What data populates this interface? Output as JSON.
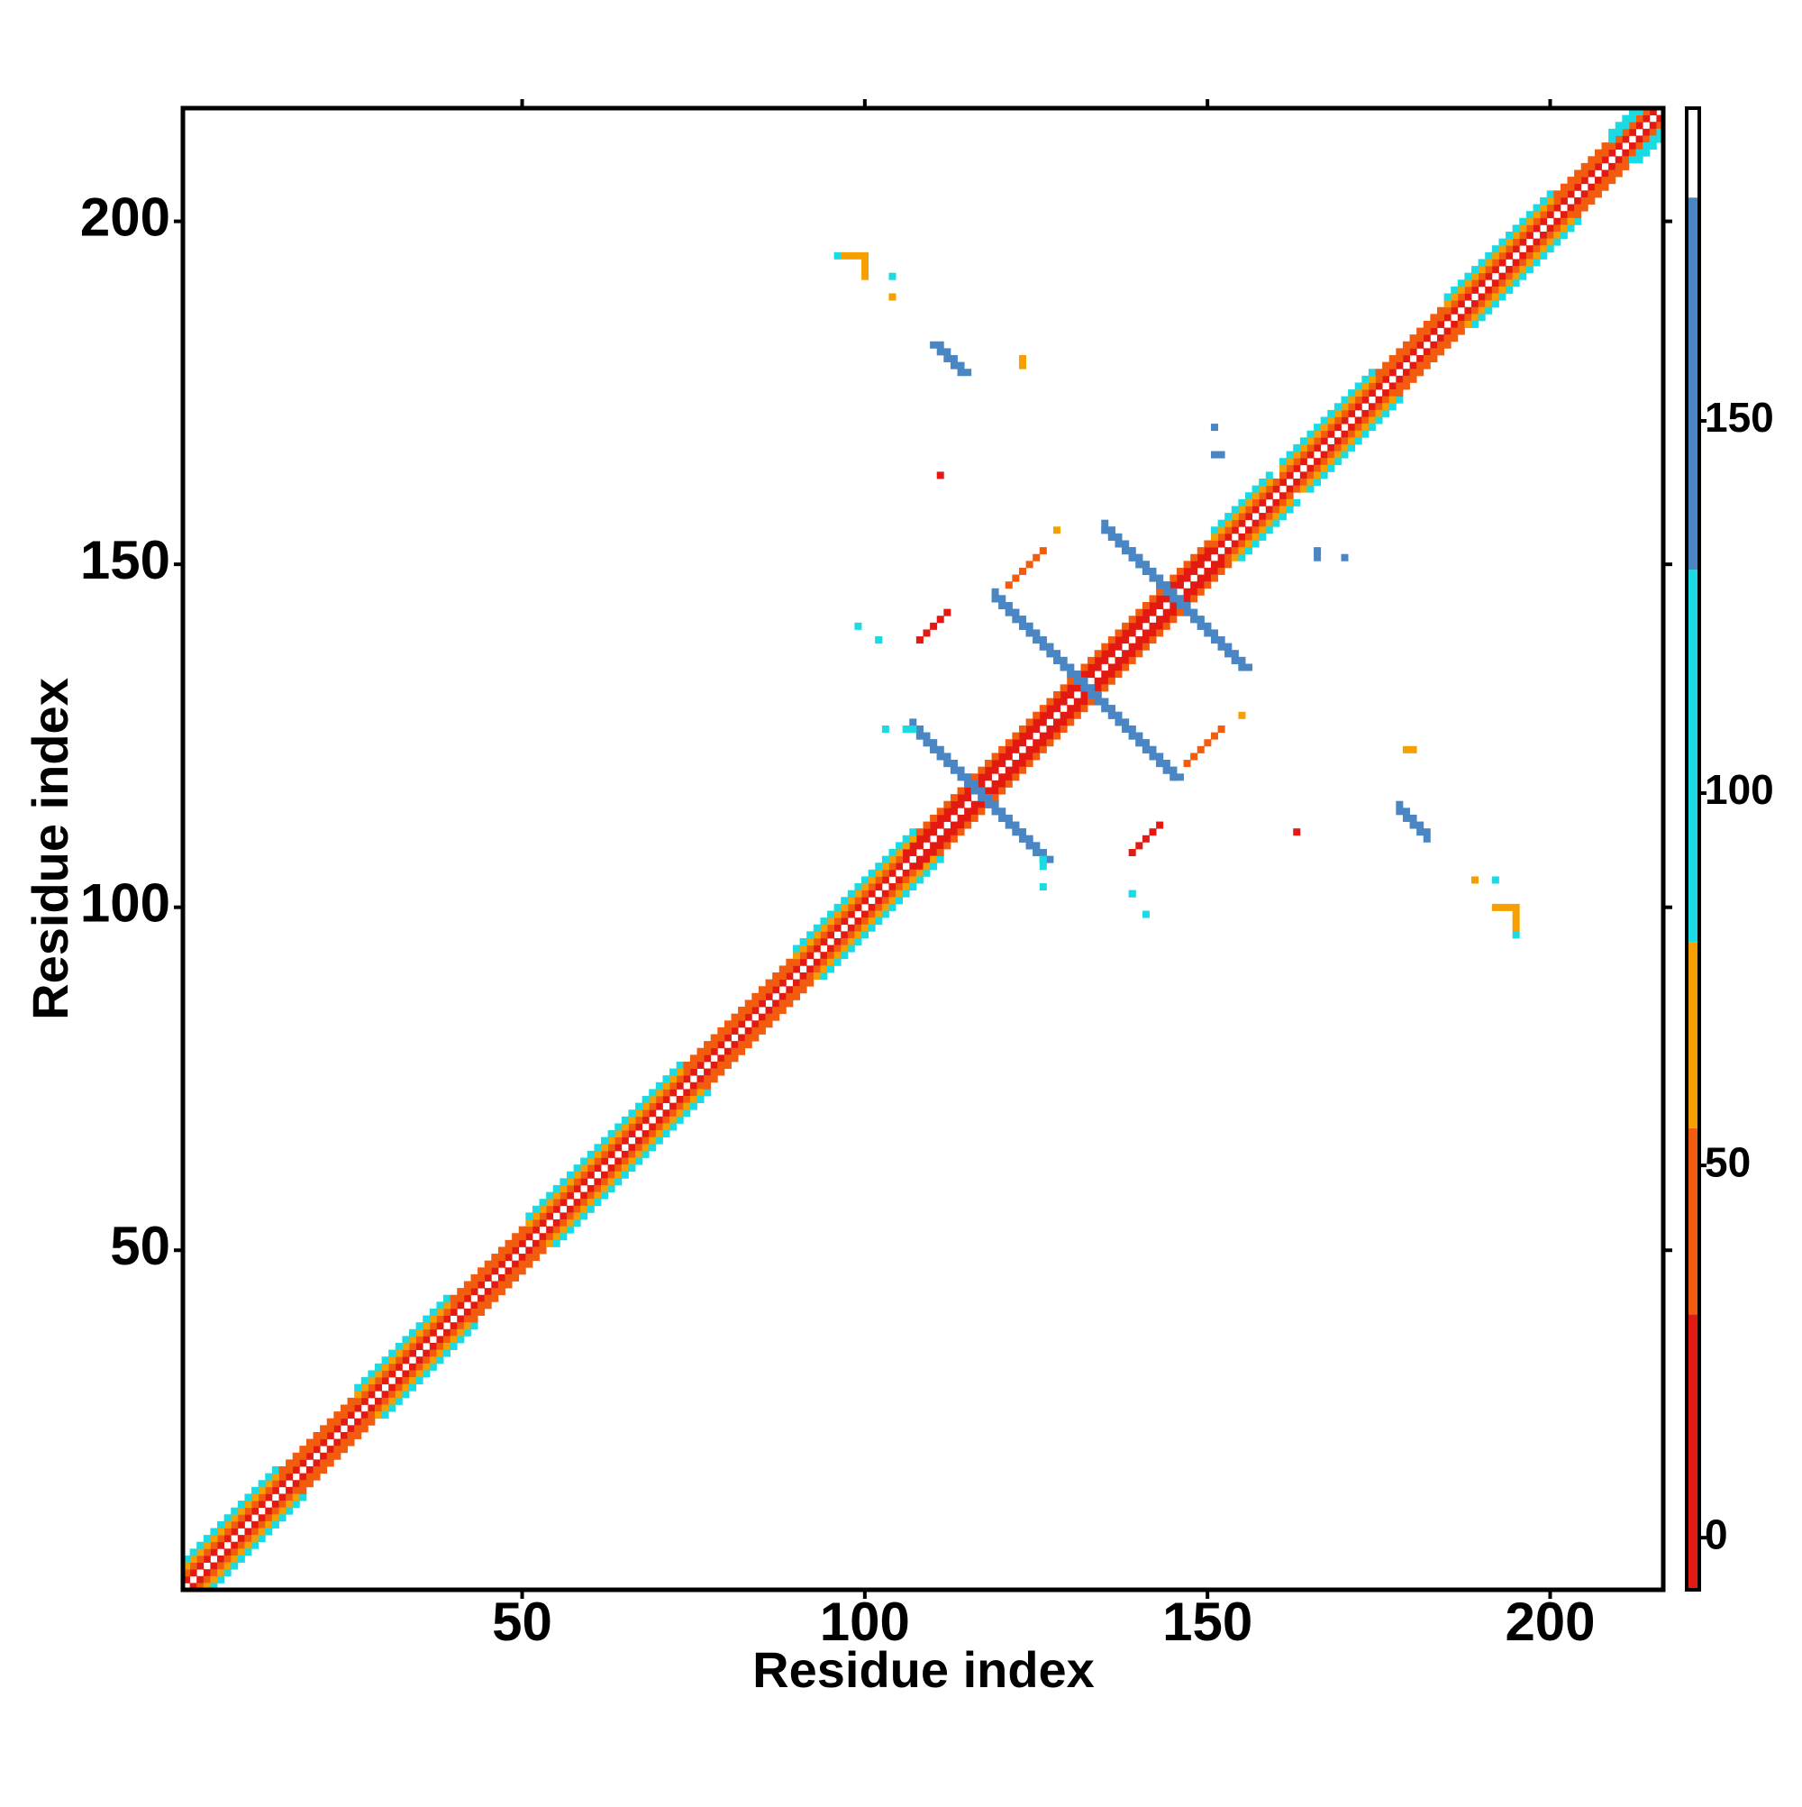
{
  "chart_data": {
    "type": "heatmap",
    "xlabel": "Residue index",
    "ylabel": "Residue index",
    "xlim": [
      0.5,
      216.5
    ],
    "ylim": [
      0.5,
      216.5
    ],
    "xticks": [
      50,
      100,
      150,
      200
    ],
    "yticks": [
      50,
      100,
      150,
      200
    ],
    "symmetric": true,
    "colorbar": {
      "lim": [
        -7,
        192
      ],
      "ticks": [
        0,
        50,
        100,
        150
      ],
      "bounds": [
        -7,
        30,
        55,
        80,
        130,
        180,
        192
      ],
      "colors": [
        "#e31a12",
        "#f25c0f",
        "#f5a000",
        "#1adbe3",
        "#4a86c4",
        "#ffffff"
      ]
    },
    "diagonals": [
      {
        "from": 1,
        "to": 215,
        "offset": 1,
        "value": 15
      },
      {
        "from": 1,
        "to": 105,
        "offset": 2,
        "value": 45
      },
      {
        "from": 106,
        "to": 150,
        "offset": 2,
        "value": 20
      },
      {
        "from": 151,
        "to": 214,
        "offset": 2,
        "value": 45
      },
      {
        "from": 1,
        "to": 14,
        "offset": 3,
        "value": 65
      },
      {
        "from": 1,
        "to": 14,
        "offset": 4,
        "value": 105
      },
      {
        "from": 15,
        "to": 25,
        "offset": 3,
        "value": 45
      },
      {
        "from": 26,
        "to": 39,
        "offset": 3,
        "value": 65
      },
      {
        "from": 26,
        "to": 39,
        "offset": 4,
        "value": 105
      },
      {
        "from": 40,
        "to": 50,
        "offset": 3,
        "value": 45
      },
      {
        "from": 51,
        "to": 66,
        "offset": 3,
        "value": 65
      },
      {
        "from": 51,
        "to": 66,
        "offset": 4,
        "value": 105
      },
      {
        "from": 67,
        "to": 73,
        "offset": 3,
        "value": 65
      },
      {
        "from": 67,
        "to": 73,
        "offset": 4,
        "value": 105
      },
      {
        "from": 74,
        "to": 89,
        "offset": 3,
        "value": 45
      },
      {
        "from": 90,
        "to": 107,
        "offset": 3,
        "value": 65
      },
      {
        "from": 90,
        "to": 107,
        "offset": 4,
        "value": 105
      },
      {
        "from": 108,
        "to": 150,
        "offset": 3,
        "value": 45
      },
      {
        "from": 151,
        "to": 159,
        "offset": 3,
        "value": 65
      },
      {
        "from": 151,
        "to": 159,
        "offset": 4,
        "value": 105
      },
      {
        "from": 161,
        "to": 174,
        "offset": 3,
        "value": 65
      },
      {
        "from": 161,
        "to": 174,
        "offset": 4,
        "value": 105
      },
      {
        "from": 175,
        "to": 184,
        "offset": 3,
        "value": 45
      },
      {
        "from": 185,
        "to": 200,
        "offset": 3,
        "value": 65
      },
      {
        "from": 185,
        "to": 200,
        "offset": 4,
        "value": 105
      },
      {
        "from": 201,
        "to": 208,
        "offset": 3,
        "value": 45
      },
      {
        "from": 209,
        "to": 213,
        "offset": 3,
        "value": 105
      },
      {
        "from": 209,
        "to": 212,
        "offset": 4,
        "value": 105
      }
    ],
    "contacts": [
      {
        "x": [
          107,
          126
        ],
        "y": [
          126,
          107
        ],
        "value": 155
      },
      {
        "x": [
          108,
          127
        ],
        "y": [
          126,
          107
        ],
        "value": 155
      },
      {
        "x": [
          106,
          107
        ],
        "y": [
          126,
          126
        ],
        "value": 105
      },
      {
        "x": [
          119,
          145
        ],
        "y": [
          145,
          119
        ],
        "value": 155
      },
      {
        "x": [
          120,
          146
        ],
        "y": [
          145,
          119
        ],
        "value": 155
      },
      {
        "x": [
          135,
          155
        ],
        "y": [
          155,
          135
        ],
        "value": 155
      },
      {
        "x": [
          136,
          156
        ],
        "y": [
          155,
          135
        ],
        "value": 155
      },
      {
        "x": [
          110,
          114
        ],
        "y": [
          182,
          178
        ],
        "value": 150
      },
      {
        "x": [
          111,
          115
        ],
        "y": [
          182,
          178
        ],
        "value": 150
      },
      {
        "x": [
          151,
          151
        ],
        "y": [
          170,
          170
        ],
        "value": 155
      },
      {
        "x": [
          151,
          152
        ],
        "y": [
          166,
          166
        ],
        "value": 155
      },
      {
        "x": [
          96,
          96
        ],
        "y": [
          195,
          195
        ],
        "value": 105
      },
      {
        "x": [
          97,
          100
        ],
        "y": [
          195,
          195
        ],
        "value": 65
      },
      {
        "x": [
          100,
          100
        ],
        "y": [
          194,
          192
        ],
        "value": 65
      },
      {
        "x": [
          104,
          104
        ],
        "y": [
          192,
          192
        ],
        "value": 105
      },
      {
        "x": [
          104,
          104
        ],
        "y": [
          189,
          189
        ],
        "value": 65
      },
      {
        "x": [
          179,
          180
        ],
        "y": [
          123,
          123
        ],
        "value": 65
      },
      {
        "x": [
          121,
          126
        ],
        "y": [
          147,
          152
        ],
        "value": 40
      },
      {
        "x": [
          108,
          112
        ],
        "y": [
          139,
          143
        ],
        "value": 20
      },
      {
        "x": [
          128,
          128
        ],
        "y": [
          155,
          155
        ],
        "value": 65
      },
      {
        "x": [
          111,
          111
        ],
        "y": [
          163,
          163
        ],
        "value": 15
      },
      {
        "x": [
          99,
          99
        ],
        "y": [
          141,
          141
        ],
        "value": 105
      },
      {
        "x": [
          102,
          102
        ],
        "y": [
          139,
          139
        ],
        "value": 105
      },
      {
        "x": [
          126,
          126
        ],
        "y": [
          103,
          103
        ],
        "value": 105
      },
      {
        "x": [
          139,
          139
        ],
        "y": [
          102,
          102
        ],
        "value": 105
      }
    ]
  }
}
